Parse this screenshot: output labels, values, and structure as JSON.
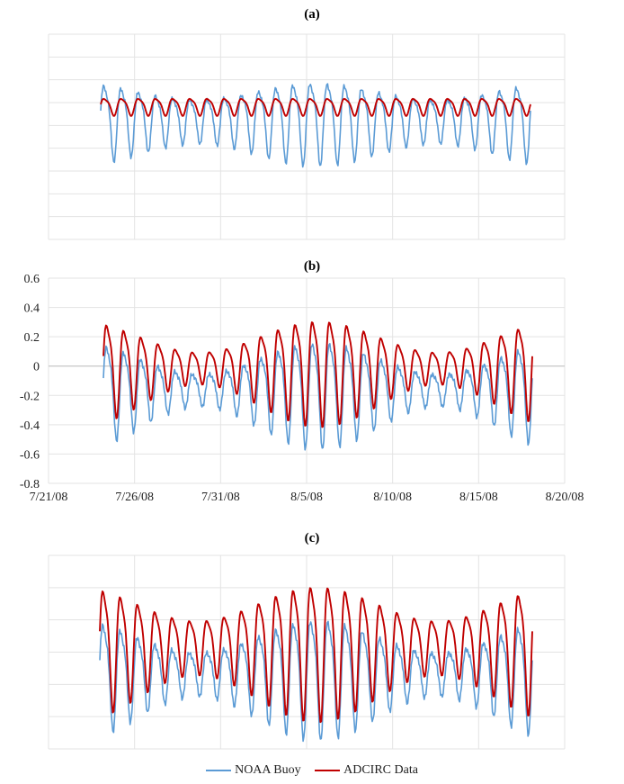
{
  "chart_data": [
    {
      "type": "line",
      "title": "(a)",
      "xlim": [
        0,
        100
      ],
      "ylim": [
        -1.2,
        0.6
      ],
      "show_axis_labels": false,
      "series": [
        {
          "name": "NOAA Buoy",
          "color": "#5b9bd5",
          "amplitude": 0.33,
          "amplitude_mod": 0.1,
          "offset": -0.14
        },
        {
          "name": "ADCIRC Data",
          "color": "#c00000",
          "amplitude": 0.09,
          "amplitude_mod": 0.0,
          "offset": -0.03
        }
      ]
    },
    {
      "type": "line",
      "title": "(b)",
      "xlim": [
        39650,
        39680
      ],
      "ylim": [
        -0.8,
        0.6
      ],
      "yticks": [
        "0.6",
        "0.4",
        "0.2",
        "0",
        "-0.2",
        "-0.4",
        "-0.6",
        "-0.8"
      ],
      "xticks": [
        "7/21/08",
        "7/26/08",
        "7/31/08",
        "8/5/08",
        "8/10/08",
        "8/15/08",
        "8/20/08"
      ],
      "series": [
        {
          "name": "NOAA Buoy",
          "color": "#5b9bd5",
          "amplitude": 0.28,
          "amplitude_mod": 0.15,
          "offset": -0.15
        },
        {
          "name": "ADCIRC Data",
          "color": "#c00000",
          "amplitude": 0.28,
          "amplitude_mod": 0.15,
          "offset": 0.0
        }
      ]
    },
    {
      "type": "line",
      "title": "(c)",
      "xlim": [
        0,
        100
      ],
      "ylim": [
        -0.6,
        0.6
      ],
      "show_axis_labels": false,
      "series": [
        {
          "name": "NOAA Buoy",
          "color": "#5b9bd5",
          "amplitude": 0.3,
          "amplitude_mod": 0.14,
          "offset": -0.12
        },
        {
          "name": "ADCIRC Data",
          "color": "#c00000",
          "amplitude": 0.35,
          "amplitude_mod": 0.15,
          "offset": 0.05
        }
      ]
    }
  ],
  "legend": {
    "items": [
      {
        "label": "NOAA Buoy",
        "color": "#5b9bd5"
      },
      {
        "label": "ADCIRC Data",
        "color": "#c00000"
      }
    ]
  }
}
